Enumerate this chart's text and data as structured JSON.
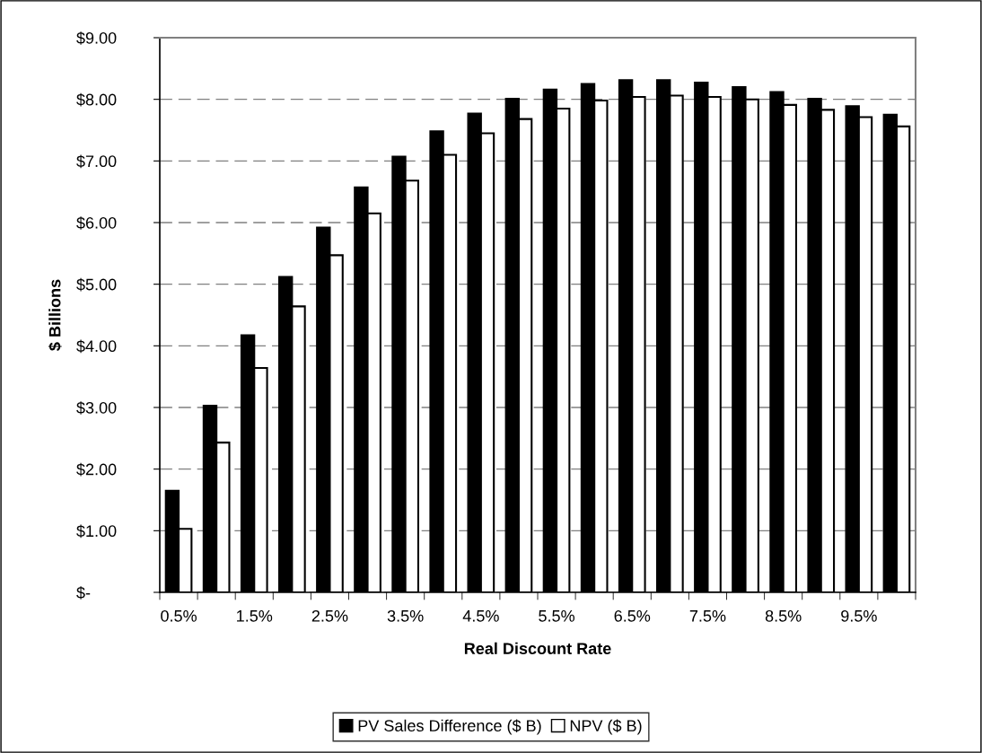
{
  "chart_data": {
    "type": "bar",
    "xlabel": "Real Discount Rate",
    "ylabel": "$ Billions",
    "categories": [
      "0.5%",
      null,
      "1.5%",
      null,
      "2.5%",
      null,
      "3.5%",
      null,
      "4.5%",
      null,
      "5.5%",
      null,
      "6.5%",
      null,
      "7.5%",
      null,
      "8.5%",
      null,
      "9.5%",
      null
    ],
    "series": [
      {
        "name": "PV Sales Difference ($ B)",
        "color": "#000000",
        "values": [
          1.65,
          3.03,
          4.17,
          5.12,
          5.92,
          6.57,
          7.07,
          7.48,
          7.77,
          8.01,
          8.16,
          8.25,
          8.31,
          8.31,
          8.27,
          8.2,
          8.12,
          8.01,
          7.89,
          7.75
        ]
      },
      {
        "name": "NPV ($ B)",
        "color": "#ffffff",
        "values": [
          1.03,
          2.43,
          3.64,
          4.64,
          5.47,
          6.15,
          6.68,
          7.1,
          7.45,
          7.68,
          7.85,
          7.98,
          8.04,
          8.06,
          8.04,
          8.0,
          7.91,
          7.83,
          7.71,
          7.56
        ]
      }
    ],
    "ylim": [
      0,
      9
    ],
    "yticks": [
      {
        "value": 0,
        "label": "$-"
      },
      {
        "value": 1,
        "label": "$1.00"
      },
      {
        "value": 2,
        "label": "$2.00"
      },
      {
        "value": 3,
        "label": "$3.00"
      },
      {
        "value": 4,
        "label": "$4.00"
      },
      {
        "value": 5,
        "label": "$5.00"
      },
      {
        "value": 6,
        "label": "$6.00"
      },
      {
        "value": 7,
        "label": "$7.00"
      },
      {
        "value": 8,
        "label": "$8.00"
      },
      {
        "value": 9,
        "label": "$9.00"
      }
    ],
    "grid": "y",
    "legend": "bottom",
    "line_style": "dashed"
  }
}
